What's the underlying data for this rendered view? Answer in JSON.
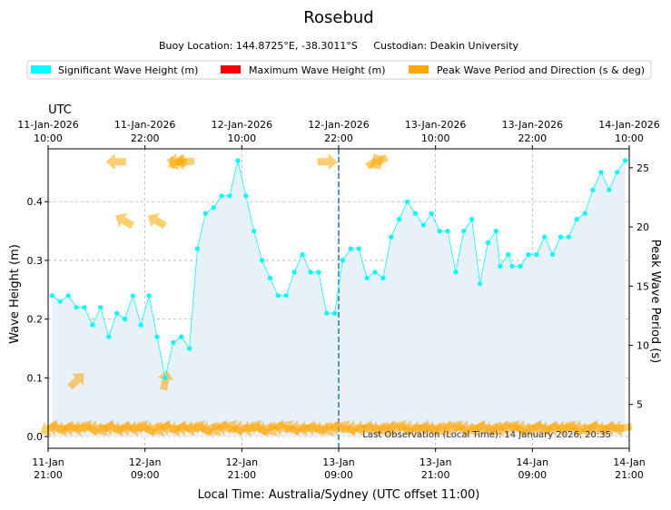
{
  "colors": {
    "sig": "#00FFFF",
    "max": "#FF0000",
    "peak": "#FFA500",
    "fill": "#e8f0f8",
    "vline": "#1f77b4"
  },
  "chart_data": {
    "type": "line",
    "title": "Rosebud",
    "subtitle": "Buoy Location: 144.8725°E, -38.3011°S     Custodian: Deakin University",
    "legend": [
      "Significant Wave Height (m)",
      "Maximum Wave Height (m)",
      "Peak Wave Period and Direction (s & deg)"
    ],
    "legend_position": "top",
    "xlabel": "Local Time: Australia/Sydney (UTC offset 11:00)",
    "ylabel": "Wave Height (m)",
    "y2label": "Peak Wave Period (s)",
    "top_axis_label": "UTC",
    "xlim": [
      0,
      72
    ],
    "ylim": [
      -0.02,
      0.49
    ],
    "y2lim": [
      1.3,
      26.6
    ],
    "yticks": [
      0.0,
      0.1,
      0.2,
      0.3,
      0.4
    ],
    "y2ticks": [
      5,
      10,
      15,
      20,
      25
    ],
    "xticks_local": [
      {
        "h": 0,
        "l1": "11-Jan",
        "l2": "21:00"
      },
      {
        "h": 12,
        "l1": "12-Jan",
        "l2": "09:00"
      },
      {
        "h": 24,
        "l1": "12-Jan",
        "l2": "21:00"
      },
      {
        "h": 36,
        "l1": "13-Jan",
        "l2": "09:00"
      },
      {
        "h": 48,
        "l1": "13-Jan",
        "l2": "21:00"
      },
      {
        "h": 60,
        "l1": "14-Jan",
        "l2": "09:00"
      },
      {
        "h": 72,
        "l1": "14-Jan",
        "l2": "21:00"
      }
    ],
    "xticks_utc": [
      {
        "h": 0,
        "l1": "11-Jan-2026",
        "l2": "10:00"
      },
      {
        "h": 12,
        "l1": "11-Jan-2026",
        "l2": "22:00"
      },
      {
        "h": 24,
        "l1": "12-Jan-2026",
        "l2": "10:00"
      },
      {
        "h": 36,
        "l1": "12-Jan-2026",
        "l2": "22:00"
      },
      {
        "h": 48,
        "l1": "13-Jan-2026",
        "l2": "10:00"
      },
      {
        "h": 60,
        "l1": "13-Jan-2026",
        "l2": "22:00"
      },
      {
        "h": 72,
        "l1": "14-Jan-2026",
        "l2": "10:00"
      }
    ],
    "last_observation": {
      "h": 36,
      "text": "Last Observation (Local Time): 14 January 2026, 20:35"
    },
    "series": [
      {
        "name": "Significant Wave Height (m)",
        "x": [
          0.5,
          1.5,
          2.5,
          3.5,
          4.5,
          5.5,
          6.5,
          7.5,
          8.5,
          9.5,
          10.5,
          11.5,
          12.5,
          13.5,
          14.5,
          15.5,
          16.5,
          17.5,
          18.5,
          19.5,
          20.5,
          21.5,
          22.5,
          23.5,
          24.5,
          25.5,
          26.5,
          27.5,
          28.5,
          29.5,
          30.5,
          31.5,
          32.5,
          33.5,
          34.5,
          35.5,
          36.5,
          37.5,
          38.5,
          39.5,
          40.5,
          41.5,
          42.5,
          43.5,
          44.5,
          45.5,
          46.5,
          47.5,
          48.5,
          49.5,
          50.5,
          51.5,
          52.5,
          53.5,
          54.5,
          55.5,
          56.0,
          57.0,
          57.5,
          58.5,
          59.5,
          60.5,
          61.5,
          62.5,
          63.5,
          64.5,
          65.5,
          66.5,
          67.5,
          68.5,
          69.5,
          70.5,
          71.5
        ],
        "values": [
          0.24,
          0.23,
          0.24,
          0.22,
          0.22,
          0.19,
          0.22,
          0.17,
          0.21,
          0.2,
          0.24,
          0.19,
          0.24,
          0.17,
          0.1,
          0.16,
          0.17,
          0.15,
          0.32,
          0.38,
          0.39,
          0.41,
          0.41,
          0.47,
          0.41,
          0.35,
          0.3,
          0.27,
          0.24,
          0.24,
          0.28,
          0.31,
          0.28,
          0.28,
          0.21,
          0.21,
          0.3,
          0.32,
          0.32,
          0.27,
          0.28,
          0.27,
          0.34,
          0.37,
          0.4,
          0.38,
          0.36,
          0.38,
          0.35,
          0.35,
          0.28,
          0.35,
          0.37,
          0.26,
          0.33,
          0.35,
          0.29,
          0.31,
          0.29,
          0.29,
          0.31,
          0.31,
          0.34,
          0.31,
          0.34,
          0.34,
          0.37,
          0.38,
          0.42,
          0.45,
          0.42,
          0.45,
          0.47
        ]
      },
      {
        "name": "Peak Wave Period and Direction (s & deg)",
        "arrows": [
          {
            "x": 8.5,
            "y": 25.5,
            "d": 90
          },
          {
            "x": 16.0,
            "y": 25.5,
            "d": 100
          },
          {
            "x": 16.0,
            "y": 25.5,
            "d": 60
          },
          {
            "x": 17.0,
            "y": 25.5,
            "d": 85
          },
          {
            "x": 34.5,
            "y": 25.5,
            "d": 270
          },
          {
            "x": 40.5,
            "y": 25.5,
            "d": 240
          },
          {
            "x": 41.0,
            "y": 25.5,
            "d": 60
          },
          {
            "x": 9.5,
            "y": 20.5,
            "d": 120
          },
          {
            "x": 13.5,
            "y": 20.5,
            "d": 120
          },
          {
            "x": 3.5,
            "y": 7.0,
            "d": 225
          },
          {
            "x": 14.5,
            "y": 7.0,
            "d": 190
          }
        ],
        "low_period": 3.0
      }
    ]
  }
}
